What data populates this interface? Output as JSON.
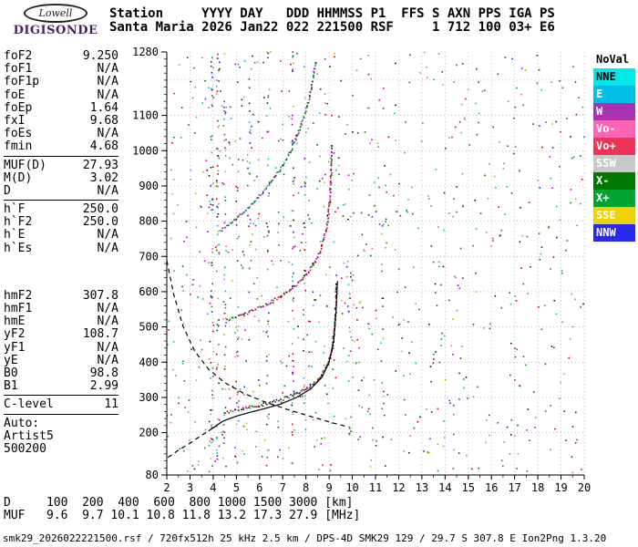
{
  "logo": {
    "top": "Lowell",
    "bottom": "DIGISONDE"
  },
  "header": {
    "line1": "Station     YYYY DAY   DDD HHMMSS P1  FFS S AXN PPS IGA PS",
    "line2": "Santa Maria 2026 Jan22 022 221500 RSF     1 712 100 03+ E6"
  },
  "station": {
    "name": "Santa Maria",
    "yyyy": "2026",
    "day": "Jan22",
    "ddd": "022",
    "hhmmss": "221500",
    "p1": "RSF",
    "s": "1",
    "axn": "712",
    "pps": "100",
    "iga": "03+",
    "ps": "E6"
  },
  "params": {
    "groups": [
      {
        "rule_below": true,
        "rows": [
          {
            "label": "foF2",
            "value": "9.250"
          },
          {
            "label": "foF1",
            "value": "N/A"
          },
          {
            "label": "foF1p",
            "value": "N/A"
          },
          {
            "label": "foE",
            "value": "N/A"
          },
          {
            "label": "foEp",
            "value": "1.64"
          },
          {
            "label": "fxI",
            "value": "9.68"
          },
          {
            "label": "foEs",
            "value": "N/A"
          },
          {
            "label": "fmin",
            "value": "4.68"
          }
        ]
      },
      {
        "rule_below": true,
        "rows": [
          {
            "label": "MUF(D)",
            "value": "27.93"
          },
          {
            "label": "M(D)",
            "value": "3.02"
          },
          {
            "label": "D",
            "value": "N/A"
          }
        ]
      },
      {
        "rule_below": false,
        "gap_after": 38,
        "rows": [
          {
            "label": "h`F",
            "value": "250.0"
          },
          {
            "label": "h`F2",
            "value": "250.0"
          },
          {
            "label": "h`E",
            "value": "N/A"
          },
          {
            "label": "h`Es",
            "value": "N/A"
          }
        ]
      },
      {
        "rule_below": true,
        "rows": [
          {
            "label": "hmF2",
            "value": "307.8"
          },
          {
            "label": "hmF1",
            "value": "N/A"
          },
          {
            "label": "hmE",
            "value": "N/A"
          },
          {
            "label": "yF2",
            "value": "108.7"
          },
          {
            "label": "yF1",
            "value": "N/A"
          },
          {
            "label": "yE",
            "value": "N/A"
          },
          {
            "label": "B0",
            "value": "98.8"
          },
          {
            "label": "B1",
            "value": "2.99"
          }
        ]
      },
      {
        "rule_below": true,
        "rows": [
          {
            "label": "C-level",
            "value": "11"
          }
        ]
      },
      {
        "rule_below": false,
        "rows": [
          {
            "label": "Auto:",
            "value": ""
          },
          {
            "label": "Artist5",
            "value": ""
          },
          {
            "label": "500200",
            "value": ""
          }
        ]
      }
    ]
  },
  "legend": {
    "items": [
      {
        "label": "NoVal",
        "bg": "#FFFFFF",
        "fg": "#000000"
      },
      {
        "label": "NNE",
        "bg": "#00E8E8",
        "fg": "#000000"
      },
      {
        "label": "E",
        "bg": "#00BEE8",
        "fg": "#FFFFFF"
      },
      {
        "label": "W",
        "bg": "#A832B4",
        "fg": "#FFFFFF"
      },
      {
        "label": "Vo-",
        "bg": "#FF64B4",
        "fg": "#FFFFFF"
      },
      {
        "label": "Vo+",
        "bg": "#F03254",
        "fg": "#FFFFFF"
      },
      {
        "label": "SSW",
        "bg": "#C8C8C8",
        "fg": "#FFFFFF"
      },
      {
        "label": "X-",
        "bg": "#007800",
        "fg": "#FFFFFF"
      },
      {
        "label": "X+",
        "bg": "#00A432",
        "fg": "#FFFFFF"
      },
      {
        "label": "SSE",
        "bg": "#F0D200",
        "fg": "#FFFFFF"
      },
      {
        "label": "NNW",
        "bg": "#2828F0",
        "fg": "#FFFFFF"
      }
    ]
  },
  "muf_table": {
    "d_label": "D",
    "muf_label": "MUF",
    "distances_km": [
      100,
      200,
      400,
      600,
      800,
      1000,
      1500,
      3000
    ],
    "muf_mhz": [
      9.6,
      9.7,
      10.1,
      10.8,
      11.8,
      13.2,
      17.3,
      27.9
    ],
    "d_unit": "[km]",
    "muf_unit": "[MHz]"
  },
  "footer": {
    "info": "smk29_2026022221500.rsf / 720fx512h 25 kHz 2.5 km / DPS-4D SMK29 129 / 29.7 S 307.8 E Ion2Png 1.3.20"
  },
  "chart_data": {
    "type": "scatter",
    "title": "Ionogram - Santa Maria 2026 Jan22 221500",
    "x_unit": "MHz",
    "y_unit": "km",
    "xlim": [
      2,
      20
    ],
    "ylim": [
      80,
      1280
    ],
    "x_tick_labels": [
      2,
      3,
      4,
      5,
      6,
      7,
      8,
      9,
      10,
      11,
      12,
      13,
      14,
      15,
      16,
      17,
      18,
      19,
      20
    ],
    "y_tick_labels": [
      80,
      200,
      300,
      400,
      500,
      600,
      700,
      800,
      900,
      1000,
      1100,
      1280
    ],
    "x_gridlines": [
      3,
      4,
      5,
      6,
      7,
      8,
      9,
      10,
      11,
      12,
      13,
      14,
      15,
      16,
      17,
      18,
      19,
      20
    ],
    "y_gridlines": [
      200,
      300,
      400,
      500,
      600,
      700,
      800,
      900,
      1000,
      1100,
      1200
    ],
    "y_minor_step": 20,
    "x_minor_step": 0.5,
    "grid": "dotted",
    "key_values": {
      "foF2": 9.25,
      "fxI": 9.68,
      "fmin": 4.68,
      "hmF2": 307.8,
      "hF": 250.0
    },
    "traces": [
      {
        "name": "F-trace-1st-hop",
        "points": [
          [
            4.55,
            258
          ],
          [
            5.2,
            266
          ],
          [
            6.0,
            277
          ],
          [
            6.8,
            291
          ],
          [
            7.5,
            307
          ],
          [
            8.1,
            327
          ],
          [
            8.6,
            353
          ],
          [
            8.95,
            392
          ],
          [
            9.15,
            442
          ],
          [
            9.25,
            505
          ],
          [
            9.3,
            565
          ],
          [
            9.32,
            628
          ]
        ],
        "palette": [
          "#B80000",
          "#006E00",
          "#151515",
          "#B800B8"
        ]
      },
      {
        "name": "F-trace-2nd-hop",
        "points": [
          [
            4.55,
            516
          ],
          [
            5.2,
            532
          ],
          [
            6.0,
            554
          ],
          [
            6.8,
            582
          ],
          [
            7.5,
            614
          ],
          [
            8.1,
            654
          ],
          [
            8.6,
            708
          ],
          [
            8.9,
            782
          ],
          [
            9.05,
            868
          ],
          [
            9.1,
            965
          ],
          [
            9.12,
            1020
          ]
        ],
        "palette": [
          "#B800B8",
          "#006E00",
          "#B80000"
        ]
      },
      {
        "name": "F-trace-3rd-hop",
        "points": [
          [
            4.3,
            772
          ],
          [
            4.9,
            800
          ],
          [
            5.5,
            836
          ],
          [
            6.1,
            878
          ],
          [
            6.7,
            928
          ],
          [
            7.3,
            992
          ],
          [
            7.8,
            1072
          ],
          [
            8.2,
            1162
          ],
          [
            8.45,
            1258
          ]
        ],
        "palette": [
          "#B800B8",
          "#006E00",
          "#009898"
        ]
      }
    ],
    "curves": [
      {
        "name": "artist-model-trace",
        "style": "solid",
        "points": [
          [
            3.8,
            205
          ],
          [
            4.4,
            232
          ],
          [
            5.0,
            247
          ],
          [
            5.6,
            258
          ],
          [
            6.2,
            268
          ],
          [
            6.9,
            281
          ],
          [
            7.6,
            300
          ],
          [
            8.2,
            324
          ],
          [
            8.7,
            358
          ],
          [
            9.0,
            400
          ],
          [
            9.2,
            462
          ],
          [
            9.3,
            545
          ],
          [
            9.36,
            630
          ]
        ]
      },
      {
        "name": "model-trace-extension",
        "style": "dashed",
        "points": [
          [
            2.05,
            130
          ],
          [
            2.5,
            150
          ],
          [
            3.0,
            170
          ],
          [
            3.4,
            188
          ],
          [
            3.8,
            205
          ]
        ]
      },
      {
        "name": "muf-transmission-curve",
        "style": "dashed",
        "points": [
          [
            2.0,
            688
          ],
          [
            2.3,
            592
          ],
          [
            2.7,
            502
          ],
          [
            3.2,
            432
          ],
          [
            3.8,
            380
          ],
          [
            4.5,
            342
          ],
          [
            5.3,
            312
          ],
          [
            6.2,
            288
          ],
          [
            7.2,
            266
          ],
          [
            8.2,
            246
          ],
          [
            9.2,
            227
          ],
          [
            9.85,
            216
          ]
        ]
      }
    ],
    "noise": {
      "seed": 1337,
      "uniform_count": 850,
      "dot_colors": [
        "#00B8B8",
        "#00B8B8",
        "#B800B8",
        "#B800B8",
        "#B80000",
        "#006E00",
        "#00A000",
        "#2020B8",
        "#B8B800",
        "#E060A0",
        "#909090",
        "#101010"
      ],
      "bands": [
        {
          "x": 3.95,
          "h": [
            100,
            1280
          ],
          "count": 60
        },
        {
          "x": 4.2,
          "h": [
            100,
            1280
          ],
          "count": 55
        },
        {
          "x": 4.5,
          "h": [
            150,
            1150
          ],
          "count": 40
        },
        {
          "x": 5.05,
          "h": [
            200,
            950
          ],
          "count": 25
        },
        {
          "x": 5.6,
          "h": [
            650,
            1280
          ],
          "count": 20
        },
        {
          "x": 6.35,
          "h": [
            100,
            1280
          ],
          "count": 40
        },
        {
          "x": 7.45,
          "h": [
            90,
            1280
          ],
          "count": 55
        },
        {
          "x": 7.95,
          "h": [
            200,
            1150
          ],
          "count": 28
        },
        {
          "x": 9.9,
          "h": [
            100,
            650
          ],
          "count": 18
        },
        {
          "x": 11.3,
          "h": [
            150,
            850
          ],
          "count": 15
        }
      ]
    }
  }
}
